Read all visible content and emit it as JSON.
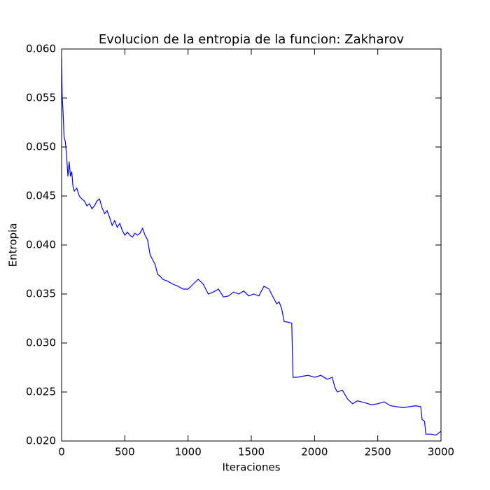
{
  "chart_data": {
    "type": "line",
    "title": "Evolucion de la entropia de la funcion: Zakharov",
    "xlabel": "Iteraciones",
    "ylabel": "Entropia",
    "x": [
      0,
      5,
      10,
      20,
      30,
      40,
      50,
      60,
      70,
      80,
      90,
      100,
      120,
      140,
      160,
      180,
      200,
      220,
      240,
      260,
      280,
      300,
      320,
      340,
      360,
      380,
      400,
      420,
      440,
      460,
      480,
      500,
      520,
      540,
      560,
      580,
      600,
      620,
      640,
      660,
      680,
      700,
      720,
      740,
      760,
      780,
      800,
      840,
      880,
      920,
      960,
      1000,
      1040,
      1080,
      1120,
      1160,
      1200,
      1240,
      1280,
      1320,
      1360,
      1400,
      1440,
      1480,
      1520,
      1560,
      1600,
      1640,
      1680,
      1700,
      1720,
      1740,
      1760,
      1800,
      1820,
      1830,
      1860,
      1900,
      1950,
      2000,
      2050,
      2100,
      2140,
      2160,
      2180,
      2220,
      2260,
      2300,
      2340,
      2400,
      2450,
      2500,
      2550,
      2600,
      2650,
      2700,
      2750,
      2800,
      2840,
      2850,
      2870,
      2880,
      2920,
      2960,
      3000
    ],
    "series": [
      {
        "name": "Entropia",
        "color": "#0000ff",
        "values": [
          0.059,
          0.055,
          0.054,
          0.051,
          0.0505,
          0.049,
          0.047,
          0.0485,
          0.047,
          0.0475,
          0.046,
          0.0455,
          0.0458,
          0.045,
          0.0447,
          0.0445,
          0.044,
          0.0442,
          0.0437,
          0.044,
          0.0445,
          0.0447,
          0.0438,
          0.0432,
          0.0435,
          0.0428,
          0.042,
          0.0425,
          0.0418,
          0.0422,
          0.0415,
          0.041,
          0.0413,
          0.041,
          0.0408,
          0.0412,
          0.041,
          0.0412,
          0.0417,
          0.041,
          0.0405,
          0.039,
          0.0385,
          0.038,
          0.037,
          0.0368,
          0.0365,
          0.0363,
          0.036,
          0.0358,
          0.0355,
          0.0355,
          0.036,
          0.0365,
          0.036,
          0.035,
          0.0352,
          0.0355,
          0.0347,
          0.0348,
          0.0352,
          0.035,
          0.0353,
          0.0348,
          0.035,
          0.0348,
          0.0358,
          0.0355,
          0.0345,
          0.034,
          0.0342,
          0.0335,
          0.0322,
          0.0321,
          0.032,
          0.0265,
          0.0265,
          0.0266,
          0.0267,
          0.0265,
          0.0267,
          0.0263,
          0.0265,
          0.0255,
          0.025,
          0.0252,
          0.0243,
          0.0238,
          0.0241,
          0.0239,
          0.0237,
          0.0238,
          0.024,
          0.0236,
          0.0235,
          0.0234,
          0.0235,
          0.0236,
          0.0235,
          0.0222,
          0.022,
          0.0207,
          0.0207,
          0.0206,
          0.021
        ]
      }
    ],
    "xlim": [
      0,
      3000
    ],
    "ylim": [
      0.02,
      0.06
    ],
    "xticks": [
      0,
      500,
      1000,
      1500,
      2000,
      2500,
      3000
    ],
    "yticks": [
      {
        "value": 0.02,
        "label": "0.020"
      },
      0.025,
      {
        "value": 0.03,
        "label": "0.030"
      },
      0.035,
      {
        "value": 0.04,
        "label": "0.040"
      },
      0.045,
      {
        "value": 0.05,
        "label": "0.050"
      },
      0.055,
      {
        "value": 0.06,
        "label": "0.060"
      }
    ],
    "grid": false
  }
}
